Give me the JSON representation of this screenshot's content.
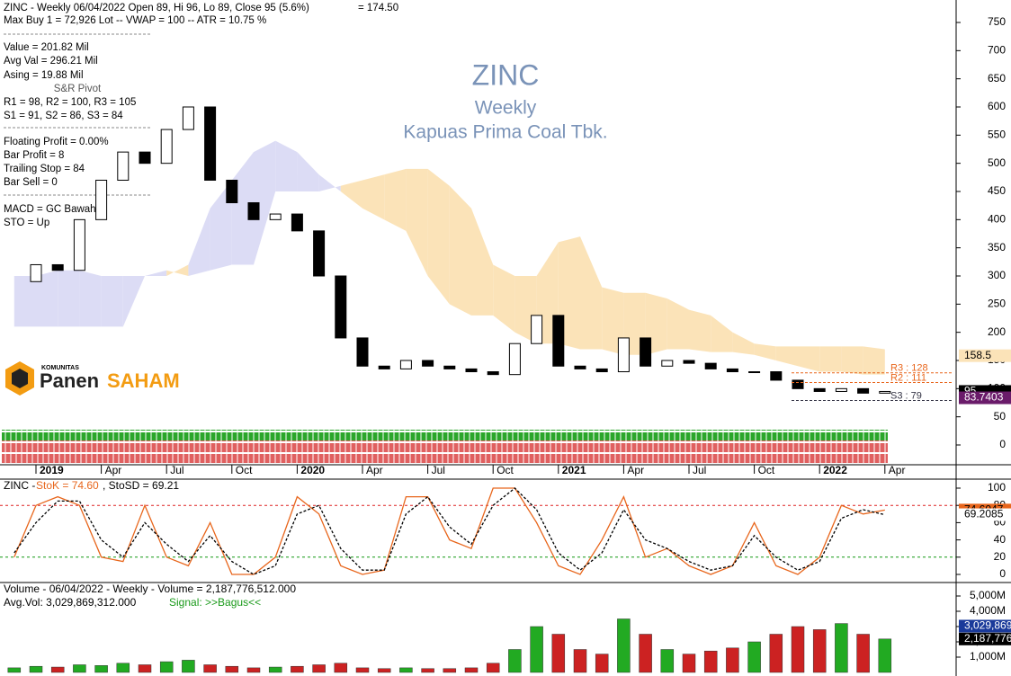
{
  "header": {
    "info": [
      "ZINC - Weekly 06/04/2022 Open 89, Hi 96, Lo 89, Close 95 (5.6%)",
      "= 174.50"
    ],
    "lines": [
      "Max Buy 1 = 72,926 Lot  --  VWAP = 100  --  ATR = 10.75 %",
      "Value = 201.82 Mil",
      "Avg Val = 296.21 Mil",
      "Asing = 19.88 Mil",
      "S&R Pivot",
      "R1 = 98, R2 = 100, R3 = 105",
      "S1 = 91, S2 = 86, S3 = 84",
      "Floating Profit = 0.00%",
      "Bar Profit = 8",
      "Trailing Stop = 84",
      "Bar Sell = 0",
      "MACD =  GC Bawah",
      "STO  =  Up"
    ],
    "logo": [
      "KOMUNITAS",
      "Panen",
      "SAHAM"
    ]
  },
  "chart_data": [
    {
      "type": "candlestick",
      "title": "ZINC",
      "subtitle": "Weekly",
      "name": "Kapuas Prima Coal Tbk.",
      "values": [
        290,
        320,
        310,
        400,
        470,
        520,
        500,
        560,
        600,
        470,
        430,
        400,
        410,
        380,
        300,
        190,
        140,
        135,
        150,
        140,
        135,
        130,
        125,
        180,
        230,
        140,
        135,
        130,
        190,
        140,
        150,
        145,
        135,
        130,
        130,
        115,
        100,
        95,
        100,
        92,
        95
      ],
      "up_color": "#ffffff",
      "down_color": "#000000",
      "span_a": [
        300,
        300,
        310,
        310,
        300,
        300,
        300,
        300,
        320,
        420,
        470,
        520,
        540,
        520,
        480,
        450,
        420,
        400,
        380,
        300,
        250,
        230,
        230,
        200,
        180,
        180,
        170,
        170,
        160,
        160,
        170,
        170,
        165,
        165,
        160,
        150,
        140,
        130,
        130,
        125,
        125
      ],
      "span_b": [
        210,
        210,
        210,
        210,
        210,
        210,
        300,
        310,
        300,
        310,
        320,
        320,
        450,
        450,
        450,
        460,
        470,
        480,
        490,
        490,
        460,
        420,
        320,
        300,
        300,
        360,
        370,
        280,
        270,
        270,
        260,
        240,
        230,
        200,
        180,
        175,
        175,
        175,
        175,
        175,
        170
      ],
      "bull_color": "#dcdcf5",
      "bear_color": "#fbe3b8",
      "ylim": [
        0,
        750
      ],
      "yticks": [
        0,
        50,
        100,
        150,
        200,
        250,
        300,
        350,
        400,
        450,
        500,
        550,
        600,
        650,
        700,
        750
      ],
      "xlim": [
        -1,
        44
      ],
      "xticks": [
        {
          "value": 1,
          "label": "2019"
        },
        {
          "value": 4,
          "label": "Apr"
        },
        {
          "value": 7,
          "label": "Jul"
        },
        {
          "value": 10,
          "label": "Oct"
        },
        {
          "value": 13,
          "label": "2020"
        },
        {
          "value": 16,
          "label": "Apr"
        },
        {
          "value": 19,
          "label": "Jul"
        },
        {
          "value": 22,
          "label": "Oct"
        },
        {
          "value": 25,
          "label": "2021"
        },
        {
          "value": 28,
          "label": "Apr"
        },
        {
          "value": 31,
          "label": "Jul"
        },
        {
          "value": 34,
          "label": "Oct"
        },
        {
          "value": 37,
          "label": "2022"
        },
        {
          "value": 40,
          "label": "Apr"
        }
      ],
      "pivots": [
        {
          "value": 128,
          "label": "R3 : 128"
        },
        {
          "value": 111,
          "label": "R2 : 111"
        },
        {
          "value": 79,
          "label": "S3 : 79"
        }
      ],
      "markers": [
        {
          "value": 158.5,
          "label": "158.5"
        },
        {
          "value": 95,
          "label": "95"
        },
        {
          "value": 83.7403,
          "label": "83.7403"
        }
      ]
    },
    {
      "type": "line",
      "title": "ZINC - ",
      "subtitle": "StoK = 74.60",
      "name": ", StoSD = 69.21",
      "series": [
        {
          "name": "StoK",
          "color": "#e8661c",
          "values": [
            20,
            80,
            90,
            80,
            20,
            15,
            80,
            20,
            10,
            60,
            0,
            0,
            20,
            90,
            70,
            10,
            0,
            5,
            90,
            90,
            40,
            30,
            100,
            100,
            60,
            10,
            0,
            40,
            90,
            20,
            30,
            10,
            0,
            10,
            60,
            10,
            0,
            20,
            80,
            70,
            74.6047
          ]
        },
        {
          "name": "StoSD",
          "color": "#000000",
          "values": [
            25,
            60,
            85,
            85,
            40,
            20,
            60,
            35,
            15,
            45,
            15,
            0,
            10,
            70,
            80,
            30,
            5,
            5,
            70,
            90,
            55,
            35,
            80,
            100,
            75,
            25,
            5,
            25,
            75,
            40,
            30,
            15,
            5,
            10,
            45,
            20,
            5,
            15,
            65,
            75,
            69.2085
          ]
        }
      ],
      "levels": [
        {
          "value": 80,
          "color": "#d22"
        },
        {
          "value": 20,
          "color": "#191"
        }
      ],
      "ylim": [
        0,
        100
      ],
      "yticks": [
        0,
        20,
        40,
        60,
        80,
        100
      ],
      "markers": [
        {
          "value": 74.6047,
          "label": "74.6047"
        },
        {
          "value": 69.2085,
          "label": "69.2085"
        }
      ]
    },
    {
      "type": "bar",
      "title": "Volume - 06/04/2022 - Weekly  -  Volume = 2,187,776,512.000",
      "subtitle": "Avg.Vol: 3,029,869,312.000",
      "name": "Signal: >>Bagus<<",
      "values": [
        300,
        400,
        350,
        500,
        450,
        600,
        500,
        700,
        800,
        500,
        400,
        300,
        350,
        400,
        500,
        600,
        300,
        250,
        300,
        250,
        250,
        300,
        600,
        1500,
        3000,
        2500,
        1500,
        1200,
        3500,
        2500,
        1500,
        1200,
        1400,
        1600,
        2000,
        2500,
        3000,
        2800,
        3200,
        2500,
        2187.776
      ],
      "up_color": "#22aa22",
      "down_color": "#cc2222",
      "ylim": [
        0,
        5000
      ],
      "yticks": [
        {
          "value": 1000,
          "label": "1,000M"
        },
        {
          "value": 2000,
          "label": "2,000M"
        },
        {
          "value": 3000,
          "label": "3,000M"
        },
        {
          "value": 4000,
          "label": "4,000M"
        },
        {
          "value": 5000,
          "label": "5,000M"
        }
      ],
      "markers": [
        {
          "value": 3029.869,
          "label": "3,029,869"
        },
        {
          "value": 2187.776,
          "label": "2,187,776"
        }
      ]
    }
  ]
}
